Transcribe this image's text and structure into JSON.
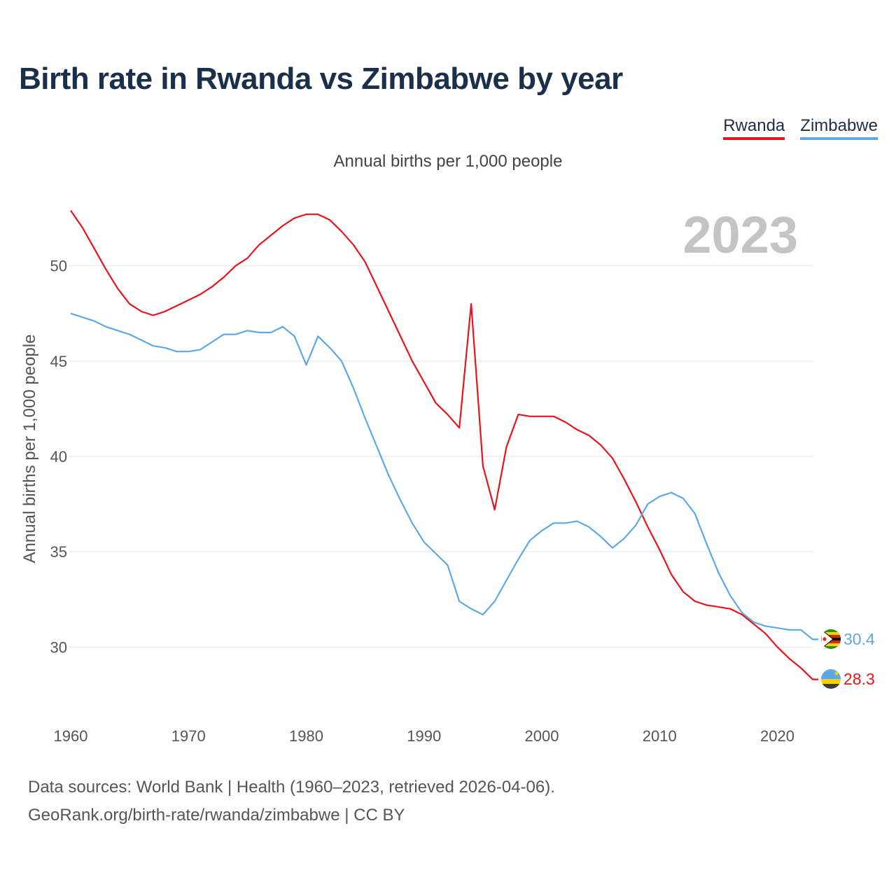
{
  "title": "Birth rate in Rwanda vs Zimbabwe by year",
  "subtitle": "Annual births per 1,000 people",
  "sources": {
    "line1": "Data sources: World Bank | Health (1960–2023, retrieved 2026-04-06).",
    "line2": "GeoRank.org/birth-rate/rwanda/zimbabwe | CC BY"
  },
  "chart_data": {
    "type": "line",
    "title": "Birth rate in Rwanda vs Zimbabwe by year",
    "ylabel": "Annual births per 1,000 people",
    "xlabel": "",
    "year_label": "2023",
    "xlim": [
      1960,
      2023
    ],
    "ylim": [
      27,
      53
    ],
    "y_ticks": [
      30,
      35,
      40,
      45,
      50
    ],
    "x_ticks": [
      1960,
      1970,
      1980,
      1990,
      2000,
      2010,
      2020
    ],
    "legend_position": "top-right",
    "x": [
      1960,
      1961,
      1962,
      1963,
      1964,
      1965,
      1966,
      1967,
      1968,
      1969,
      1970,
      1971,
      1972,
      1973,
      1974,
      1975,
      1976,
      1977,
      1978,
      1979,
      1980,
      1981,
      1982,
      1983,
      1984,
      1985,
      1986,
      1987,
      1988,
      1989,
      1990,
      1991,
      1992,
      1993,
      1994,
      1995,
      1996,
      1997,
      1998,
      1999,
      2000,
      2001,
      2002,
      2003,
      2004,
      2005,
      2006,
      2007,
      2008,
      2009,
      2010,
      2011,
      2012,
      2013,
      2014,
      2015,
      2016,
      2017,
      2018,
      2019,
      2020,
      2021,
      2022,
      2023
    ],
    "series": [
      {
        "name": "Rwanda",
        "color": "#e8141c",
        "end_label": "28.3",
        "values": [
          52.9,
          52.0,
          50.9,
          49.8,
          48.8,
          48.0,
          47.6,
          47.4,
          47.6,
          47.9,
          48.2,
          48.5,
          48.9,
          49.4,
          50.0,
          50.4,
          51.1,
          51.6,
          52.1,
          52.5,
          52.7,
          52.7,
          52.4,
          51.8,
          51.1,
          50.2,
          48.9,
          47.6,
          46.3,
          45.0,
          43.9,
          42.8,
          42.2,
          41.5,
          48.0,
          39.5,
          37.2,
          40.5,
          42.2,
          42.1,
          42.1,
          42.1,
          41.8,
          41.4,
          41.1,
          40.6,
          39.9,
          38.8,
          37.6,
          36.3,
          35.1,
          33.8,
          32.9,
          32.4,
          32.2,
          32.1,
          32.0,
          31.7,
          31.2,
          30.7,
          30.0,
          29.4,
          28.9,
          28.3
        ]
      },
      {
        "name": "Zimbabwe",
        "color": "#5fa8e8",
        "end_label": "30.4",
        "values": [
          47.5,
          47.3,
          47.1,
          46.8,
          46.6,
          46.4,
          46.1,
          45.8,
          45.7,
          45.5,
          45.5,
          45.6,
          46.0,
          46.4,
          46.4,
          46.6,
          46.5,
          46.5,
          46.8,
          46.3,
          44.8,
          46.3,
          45.7,
          45.0,
          43.6,
          42.0,
          40.5,
          39.0,
          37.7,
          36.5,
          35.5,
          34.9,
          34.3,
          32.4,
          32.0,
          31.7,
          32.4,
          33.5,
          34.6,
          35.6,
          36.1,
          36.5,
          36.5,
          36.6,
          36.3,
          35.8,
          35.2,
          35.7,
          36.4,
          37.5,
          37.9,
          38.1,
          37.8,
          37.0,
          35.4,
          33.9,
          32.7,
          31.8,
          31.3,
          31.1,
          31.0,
          30.9,
          30.9,
          30.4
        ]
      }
    ]
  }
}
